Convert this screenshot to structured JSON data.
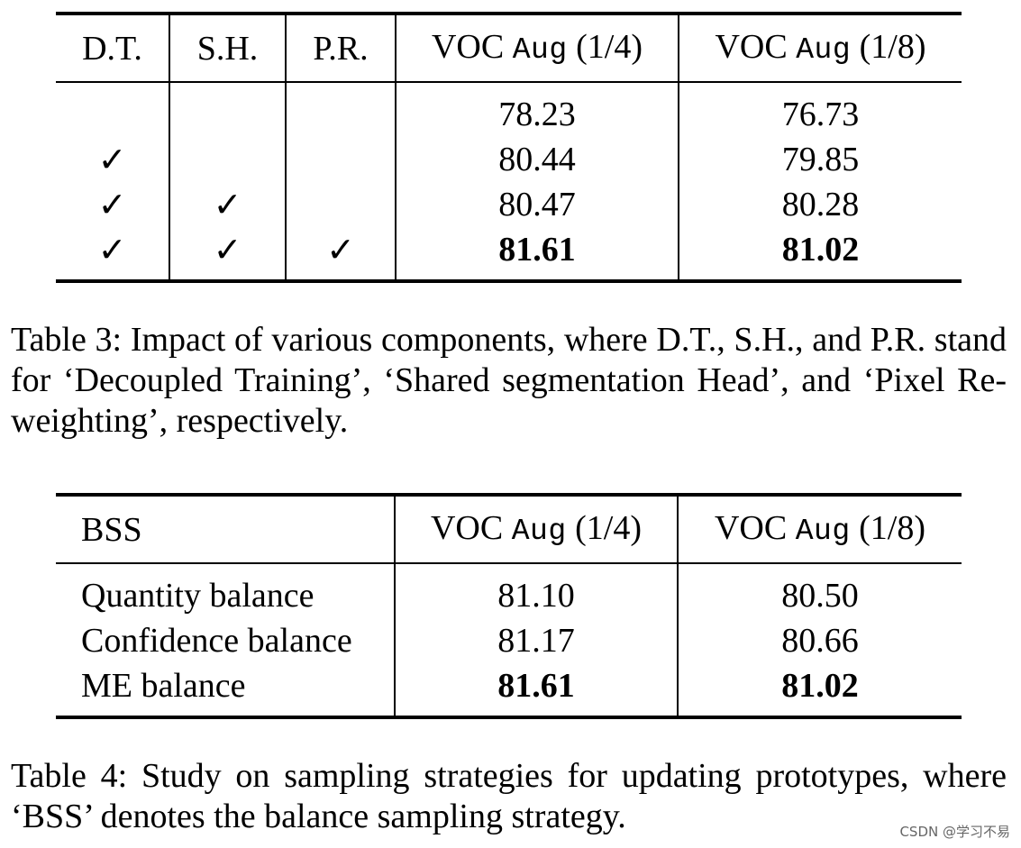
{
  "table3": {
    "headers": {
      "dt": "D.T.",
      "sh": "S.H.",
      "pr": "P.R.",
      "voc14_prefix": "VOC",
      "voc14_mono": "Aug",
      "voc14_suffix": "(1/4)",
      "voc18_prefix": "VOC",
      "voc18_mono": "Aug",
      "voc18_suffix": "(1/8)"
    },
    "rows": [
      {
        "dt": "",
        "sh": "",
        "pr": "",
        "v14": "78.23",
        "v18": "76.73"
      },
      {
        "dt": "✓",
        "sh": "",
        "pr": "",
        "v14": "80.44",
        "v18": "79.85"
      },
      {
        "dt": "✓",
        "sh": "✓",
        "pr": "",
        "v14": "80.47",
        "v18": "80.28"
      },
      {
        "dt": "✓",
        "sh": "✓",
        "pr": "✓",
        "v14": "81.61",
        "v18": "81.02"
      }
    ],
    "caption": "Table 3: Impact of various components, where D.T., S.H., and P.R. stand for ‘Decoupled Training’, ‘Shared segmentation Head’, and ‘Pixel Re-weighting’, respectively."
  },
  "table4": {
    "headers": {
      "bss": "BSS",
      "voc14_prefix": "VOC",
      "voc14_mono": "Aug",
      "voc14_suffix": "(1/4)",
      "voc18_prefix": "VOC",
      "voc18_mono": "Aug",
      "voc18_suffix": "(1/8)"
    },
    "rows": [
      {
        "name": "Quantity balance",
        "v14": "81.10",
        "v18": "80.50"
      },
      {
        "name": "Confidence balance",
        "v14": "81.17",
        "v18": "80.66"
      },
      {
        "name": "ME balance",
        "v14": "81.61",
        "v18": "81.02"
      }
    ],
    "caption": "Table 4:  Study on sampling strategies for updating prototypes, where ‘BSS’ denotes the balance sampling strategy."
  },
  "watermark": "CSDN @学习不易"
}
